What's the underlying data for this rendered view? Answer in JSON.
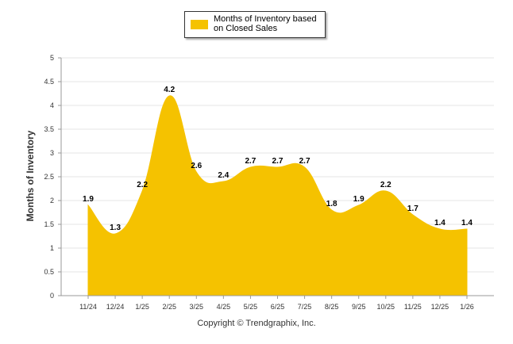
{
  "chart_data": {
    "type": "area",
    "title": "",
    "legend": {
      "label": "Months of Inventory based on Closed Sales",
      "position": "top-center"
    },
    "ylabel": "Months of Inventory",
    "xlabel": "",
    "ylim": [
      0,
      5
    ],
    "yticks": [
      "0",
      "0.5",
      "1",
      "1.5",
      "2",
      "2.5",
      "3",
      "3.5",
      "4",
      "4.5",
      "5"
    ],
    "grid": true,
    "categories": [
      "11/24",
      "12/24",
      "1/25",
      "2/25",
      "3/25",
      "4/25",
      "5/25",
      "6/25",
      "7/25",
      "8/25",
      "9/25",
      "10/25",
      "11/25",
      "12/25",
      "1/26"
    ],
    "values": [
      1.9,
      1.3,
      2.2,
      4.2,
      2.6,
      2.4,
      2.7,
      2.7,
      2.7,
      1.8,
      1.9,
      2.2,
      1.7,
      1.4,
      1.4
    ],
    "value_labels": [
      "1.9",
      "1.3",
      "2.2",
      "4.2",
      "2.6",
      "2.4",
      "2.7",
      "2.7",
      "2.7",
      "1.8",
      "1.9",
      "2.2",
      "1.7",
      "1.4",
      "1.4"
    ],
    "color": "#f5c200"
  },
  "footer": {
    "copyright": "Copyright © Trendgraphix, Inc."
  }
}
